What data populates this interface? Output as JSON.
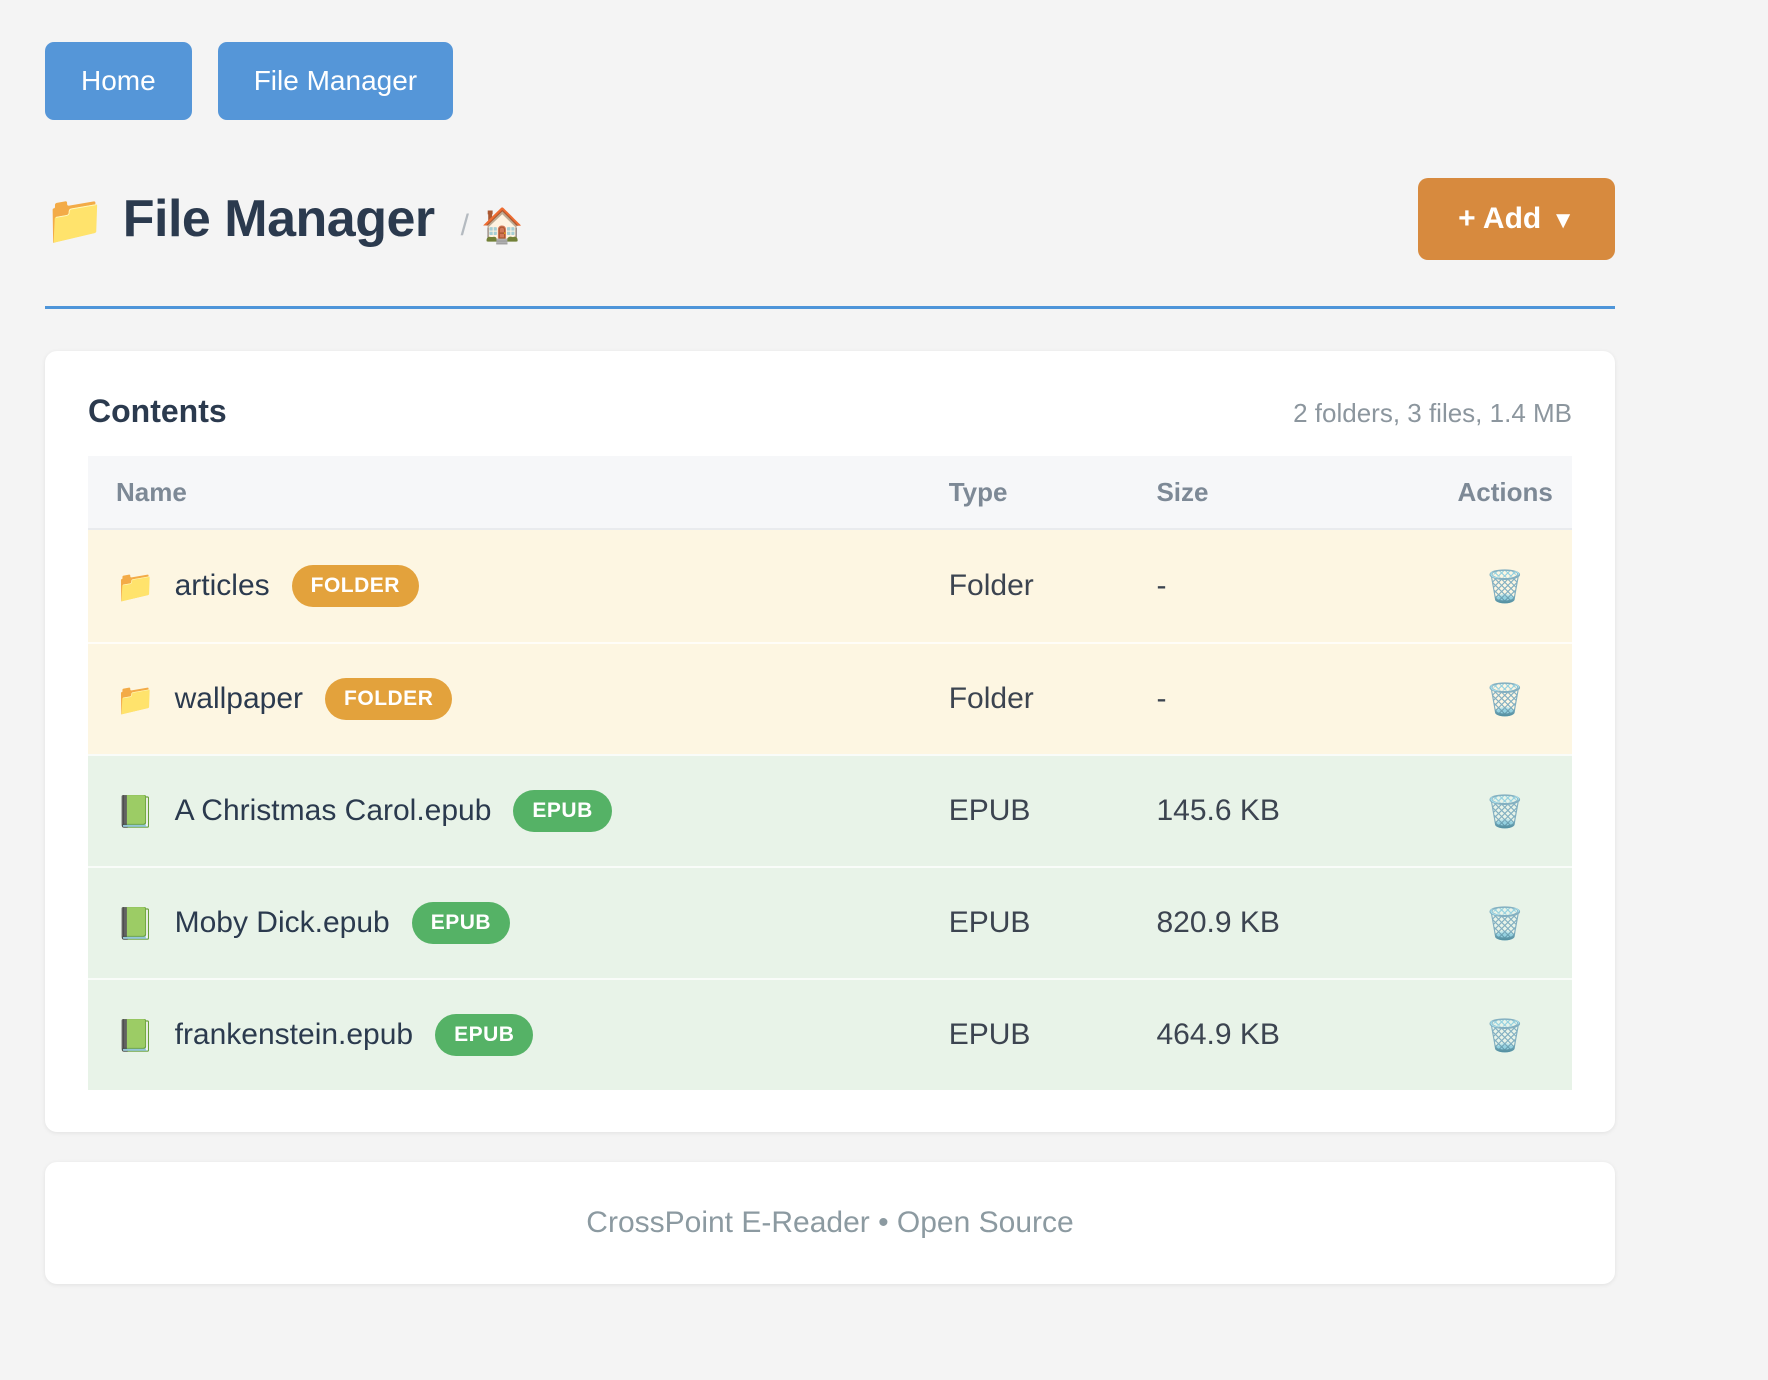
{
  "nav": {
    "home_label": "Home",
    "file_manager_label": "File Manager"
  },
  "header": {
    "folder_icon": "📁",
    "title": "File Manager",
    "breadcrumb_separator": "/",
    "breadcrumb_home_icon": "🏠",
    "add_button_label": "+ Add",
    "add_button_caret": "▼"
  },
  "contents": {
    "title": "Contents",
    "summary": "2 folders, 3 files, 1.4 MB",
    "columns": {
      "name": "Name",
      "type": "Type",
      "size": "Size",
      "actions": "Actions"
    },
    "trash_icon": "🗑️",
    "rows": [
      {
        "icon": "📁",
        "name": "articles",
        "badge": "FOLDER",
        "type": "Folder",
        "size": "-"
      },
      {
        "icon": "📁",
        "name": "wallpaper",
        "badge": "FOLDER",
        "type": "Folder",
        "size": "-"
      },
      {
        "icon": "📗",
        "name": "A Christmas Carol.epub",
        "badge": "EPUB",
        "type": "EPUB",
        "size": "145.6 KB"
      },
      {
        "icon": "📗",
        "name": "Moby Dick.epub",
        "badge": "EPUB",
        "type": "EPUB",
        "size": "820.9 KB"
      },
      {
        "icon": "📗",
        "name": "frankenstein.epub",
        "badge": "EPUB",
        "type": "EPUB",
        "size": "464.9 KB"
      }
    ]
  },
  "footer": {
    "text": "CrossPoint E-Reader • Open Source"
  },
  "colors": {
    "nav_button": "#5596d8",
    "add_button": "#d78a3e",
    "title_rule": "#4e95d9",
    "folder_row_bg": "#fdf6e2",
    "epub_row_bg": "#e8f3e8",
    "folder_badge": "#e3a23c",
    "epub_badge": "#55b266",
    "title_text": "#2b3a4e",
    "muted_text": "#8c969e"
  }
}
